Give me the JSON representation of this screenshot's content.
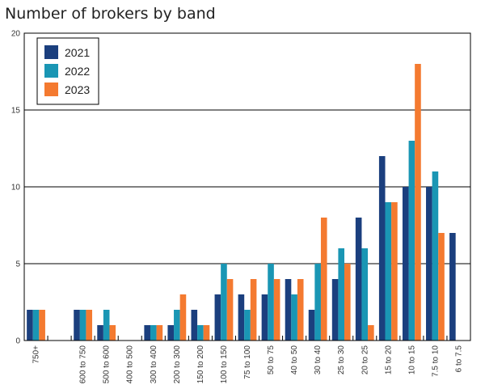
{
  "chart_data": {
    "type": "bar",
    "title": "Number of brokers by band",
    "categories": [
      "750+",
      "",
      "600 to 750",
      "500 to 600",
      "400 to 500",
      "300 to 400",
      "200 to 300",
      "150 to 200",
      "100 to 150",
      "75 to 100",
      "50 to 75",
      "40 to 50",
      "30 to 40",
      "25 to 30",
      "20 to 25",
      "15 to 20",
      "10 to 15",
      "7.5 to 10",
      "6 to 7.5"
    ],
    "series": [
      {
        "name": "2021",
        "color": "#1b3f7e",
        "values": [
          2,
          0,
          2,
          1,
          0,
          1,
          1,
          2,
          3,
          3,
          3,
          4,
          2,
          4,
          8,
          12,
          10,
          10,
          7
        ]
      },
      {
        "name": "2022",
        "color": "#1a96b4",
        "values": [
          2,
          0,
          2,
          2,
          0,
          1,
          2,
          1,
          5,
          2,
          5,
          3,
          5,
          6,
          6,
          9,
          13,
          11,
          0
        ]
      },
      {
        "name": "2023",
        "color": "#f47a30",
        "values": [
          2,
          0,
          2,
          1,
          0,
          1,
          3,
          1,
          4,
          4,
          4,
          4,
          8,
          5,
          1,
          9,
          18,
          7,
          0
        ]
      }
    ],
    "ylim": [
      0,
      20
    ],
    "yticks": [
      0,
      5,
      10,
      15,
      20
    ],
    "grid": true,
    "legend": "top-left"
  }
}
